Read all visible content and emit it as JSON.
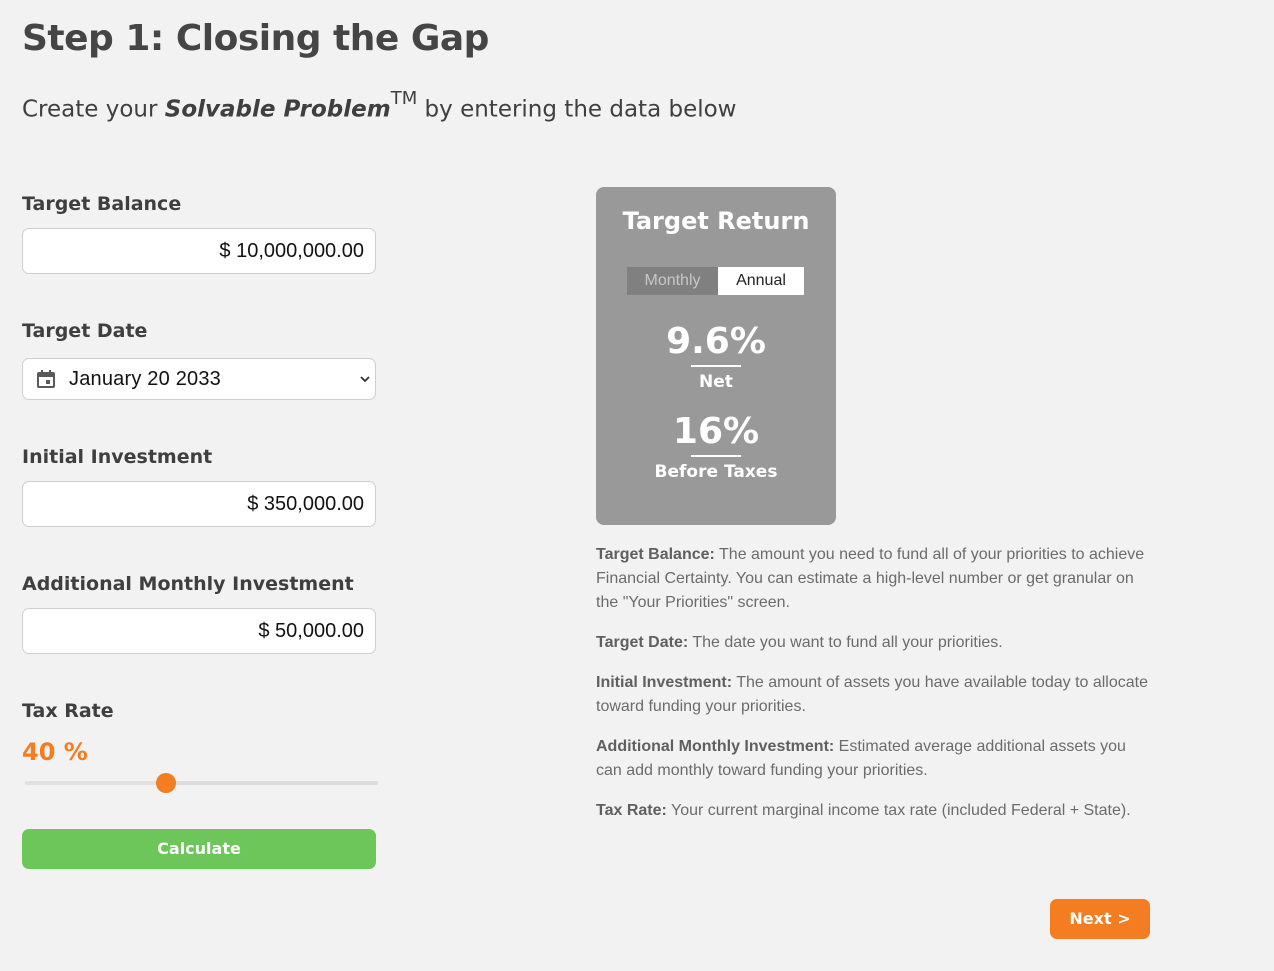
{
  "header": {
    "title": "Step 1: Closing the Gap",
    "subtitle_prefix": "Create your ",
    "subtitle_emphasis": "Solvable Problem",
    "subtitle_mark": "TM",
    "subtitle_suffix": " by entering the data below"
  },
  "form": {
    "target_balance": {
      "label": "Target Balance",
      "value": "$ 10,000,000.00"
    },
    "target_date": {
      "label": "Target Date",
      "value": "January 20 2033",
      "icon": "calendar-icon"
    },
    "initial_investment": {
      "label": "Initial Investment",
      "value": "$ 350,000.00"
    },
    "monthly_investment": {
      "label": "Additional Monthly Investment",
      "value": "$ 50,000.00"
    },
    "tax_rate": {
      "label": "Tax Rate",
      "value_text": "40 %",
      "value": 40,
      "min": 0,
      "max": 100
    },
    "calculate_label": "Calculate"
  },
  "target_return": {
    "title": "Target Return",
    "toggle": {
      "monthly": "Monthly",
      "annual": "Annual",
      "selected": "Annual"
    },
    "net_value": "9.6%",
    "net_label": "Net",
    "pretax_value": "16%",
    "pretax_label": "Before Taxes"
  },
  "definitions": [
    {
      "term": "Target Balance:",
      "text": " The amount you need to fund all of your priorities to achieve Financial Certainty. You can estimate a high-level number or get granular on the \"Your Priorities\" screen."
    },
    {
      "term": "Target Date:",
      "text": " The date you want to fund all your priorities."
    },
    {
      "term": "Initial Investment:",
      "text": " The amount of assets you have available today to allocate toward funding your priorities."
    },
    {
      "term": "Additional Monthly Investment:",
      "text": " Estimated average additional assets you can add monthly toward funding your priorities."
    },
    {
      "term": "Tax Rate:",
      "text": " Your current marginal income tax rate (included Federal + State)."
    }
  ],
  "next_label": "Next >",
  "colors": {
    "accent_orange": "#f47c21",
    "calculate_green": "#6cc65a",
    "card_gray": "#999999",
    "background": "#f2f2f2"
  }
}
